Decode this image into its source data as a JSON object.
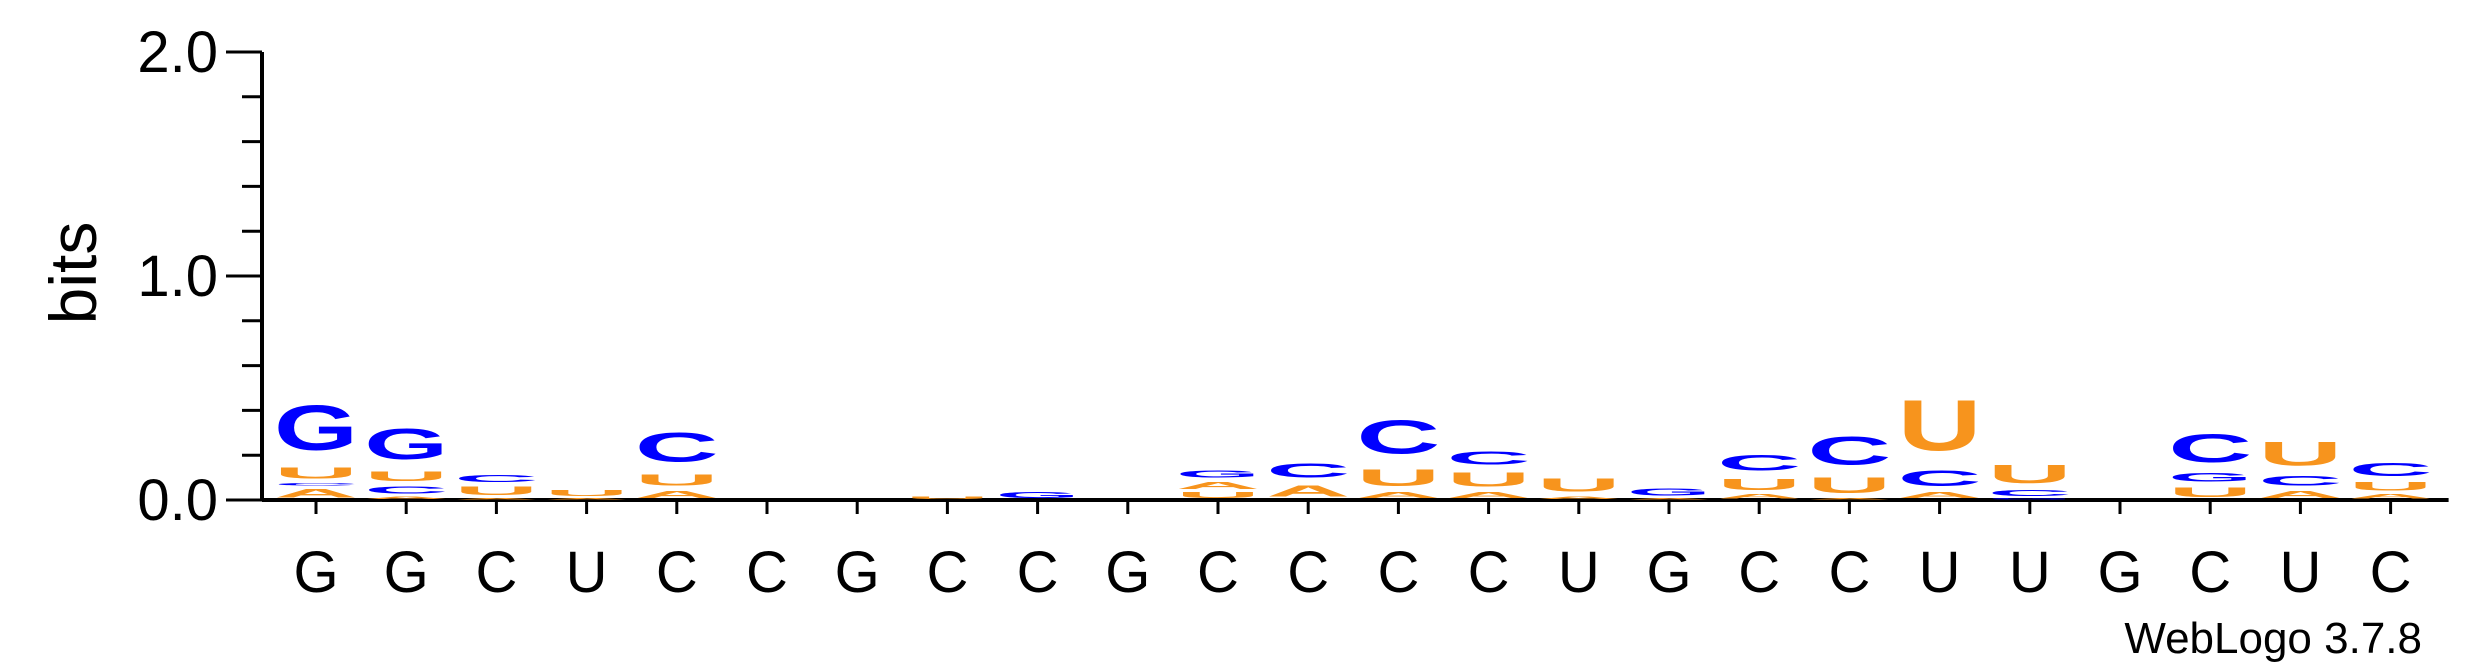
{
  "chart_data": {
    "type": "sequence-logo",
    "ylabel": "bits",
    "ylim": [
      0,
      2.0
    ],
    "yticks": [
      "0.0",
      "1.0",
      "2.0"
    ],
    "footer": "WebLogo 3.7.8",
    "colors": {
      "A": "#f7941d",
      "U": "#f7941d",
      "C": "#0000ff",
      "G": "#0000ff"
    },
    "positions": [
      {
        "label": "G",
        "stack": [
          [
            "A",
            0.06
          ],
          [
            "C",
            0.02
          ],
          [
            "U",
            0.08
          ],
          [
            "G",
            0.32
          ]
        ]
      },
      {
        "label": "G",
        "stack": [
          [
            "A",
            0.02
          ],
          [
            "C",
            0.05
          ],
          [
            "U",
            0.07
          ],
          [
            "G",
            0.22
          ]
        ]
      },
      {
        "label": "C",
        "stack": [
          [
            "A",
            0.01
          ],
          [
            "U",
            0.06
          ],
          [
            "C",
            0.05
          ]
        ]
      },
      {
        "label": "U",
        "stack": [
          [
            "A",
            0.01
          ],
          [
            "U",
            0.04
          ]
        ]
      },
      {
        "label": "C",
        "stack": [
          [
            "A",
            0.05
          ],
          [
            "U",
            0.08
          ],
          [
            "C",
            0.21
          ]
        ]
      },
      {
        "label": "C",
        "stack": []
      },
      {
        "label": "G",
        "stack": []
      },
      {
        "label": "C",
        "stack": [
          [
            "U",
            0.02
          ]
        ]
      },
      {
        "label": "C",
        "stack": [
          [
            "G",
            0.04
          ]
        ]
      },
      {
        "label": "G",
        "stack": []
      },
      {
        "label": "C",
        "stack": [
          [
            "U",
            0.04
          ],
          [
            "A",
            0.05
          ],
          [
            "G",
            0.05
          ]
        ]
      },
      {
        "label": "C",
        "stack": [
          [
            "A",
            0.08
          ],
          [
            "C",
            0.1
          ]
        ]
      },
      {
        "label": "C",
        "stack": [
          [
            "A",
            0.04
          ],
          [
            "U",
            0.12
          ],
          [
            "C",
            0.24
          ]
        ]
      },
      {
        "label": "C",
        "stack": [
          [
            "A",
            0.04
          ],
          [
            "U",
            0.1
          ],
          [
            "C",
            0.09
          ]
        ]
      },
      {
        "label": "U",
        "stack": [
          [
            "A",
            0.02
          ],
          [
            "U",
            0.09
          ]
        ]
      },
      {
        "label": "G",
        "stack": [
          [
            "A",
            0.01
          ],
          [
            "G",
            0.05
          ]
        ]
      },
      {
        "label": "C",
        "stack": [
          [
            "A",
            0.03
          ],
          [
            "U",
            0.08
          ],
          [
            "C",
            0.11
          ]
        ]
      },
      {
        "label": "C",
        "stack": [
          [
            "A",
            0.01
          ],
          [
            "U",
            0.11
          ],
          [
            "C",
            0.2
          ]
        ]
      },
      {
        "label": "U",
        "stack": [
          [
            "A",
            0.04
          ],
          [
            "C",
            0.11
          ],
          [
            "U",
            0.36
          ]
        ]
      },
      {
        "label": "U",
        "stack": [
          [
            "G",
            0.01
          ],
          [
            "C",
            0.04
          ],
          [
            "U",
            0.13
          ]
        ]
      },
      {
        "label": "G",
        "stack": []
      },
      {
        "label": "C",
        "stack": [
          [
            "U",
            0.07
          ],
          [
            "G",
            0.06
          ],
          [
            "C",
            0.2
          ]
        ]
      },
      {
        "label": "U",
        "stack": [
          [
            "A",
            0.05
          ],
          [
            "C",
            0.07
          ],
          [
            "U",
            0.17
          ]
        ]
      },
      {
        "label": "C",
        "stack": [
          [
            "A",
            0.03
          ],
          [
            "U",
            0.06
          ],
          [
            "C",
            0.09
          ]
        ]
      }
    ]
  }
}
